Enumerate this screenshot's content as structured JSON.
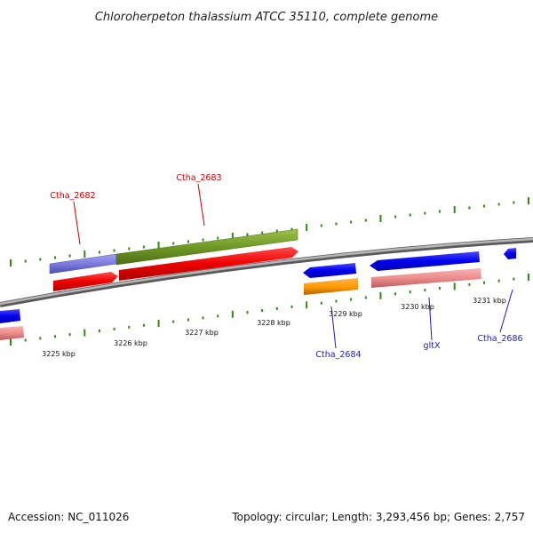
{
  "title": "Chloroherpeton thalassium ATCC 35110, complete genome",
  "footer": {
    "accession": "Accession: NC_011026",
    "summary": "Topology: circular; Length: 3,293,456 bp; Genes: 2,757"
  },
  "colors": {
    "backbone": "#8e8e8e",
    "tick": "#2e8b12",
    "red_label": "#cc0000",
    "blue_label": "#1a1ab8"
  },
  "axis": {
    "kbp_labels": [
      "3225 kbp",
      "3226 kbp",
      "3227 kbp",
      "3228 kbp",
      "3229 kbp",
      "3230 kbp",
      "3231 kbp"
    ]
  },
  "genes": [
    {
      "name": "Ctha_2682",
      "color": "#cc0000"
    },
    {
      "name": "Ctha_2683",
      "color": "#cc0000"
    },
    {
      "name": "Ctha_2684",
      "color": "#1a1ab8"
    },
    {
      "name": "gltX",
      "color": "#1a1ab8"
    },
    {
      "name": "Ctha_2686",
      "color": "#1a1ab8"
    }
  ]
}
